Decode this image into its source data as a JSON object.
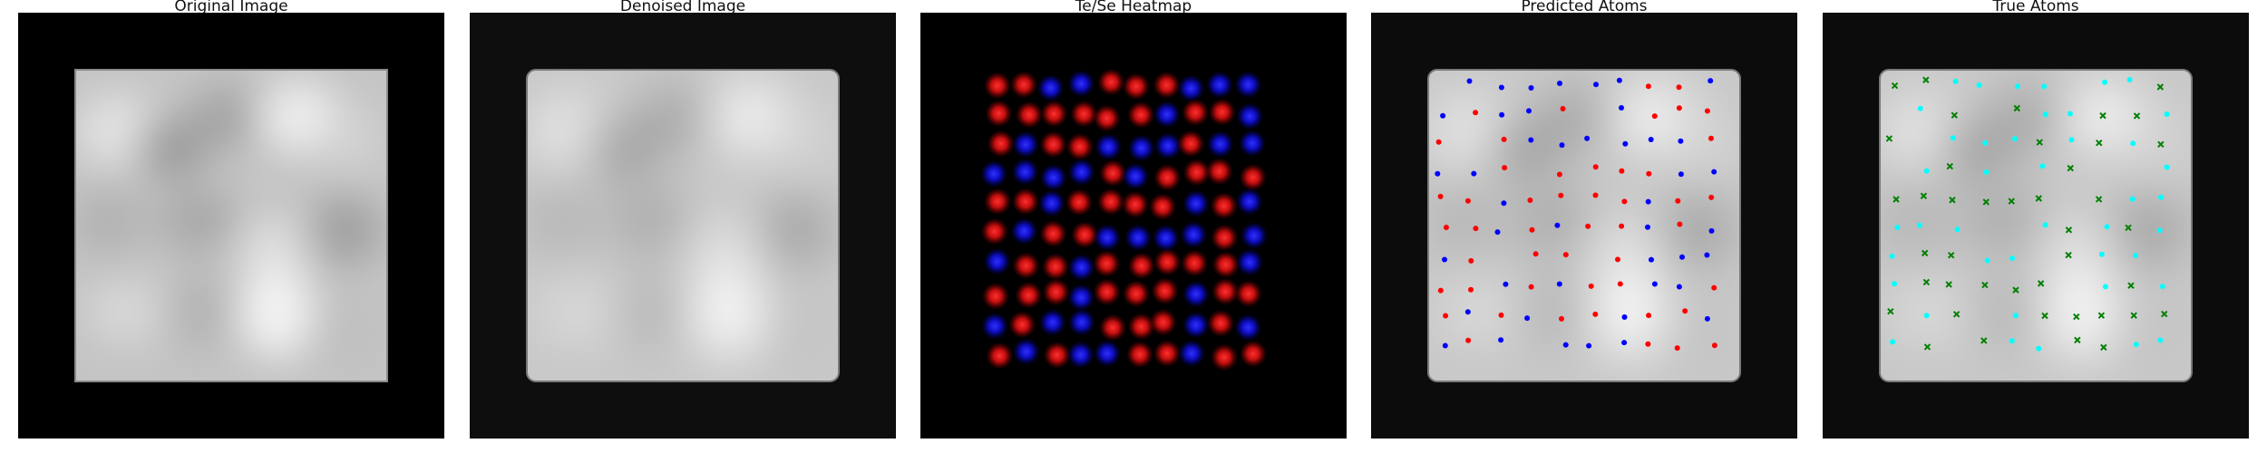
{
  "panels": [
    {
      "id": "original",
      "title": "Original Image"
    },
    {
      "id": "denoised",
      "title": "Denoised Image"
    },
    {
      "id": "heatmap",
      "title": "Te/Se Heatmap"
    },
    {
      "id": "predicted",
      "title": "Predicted Atoms"
    },
    {
      "id": "true",
      "title": "True Atoms"
    }
  ],
  "colors": {
    "background": "#000000",
    "te": "#e8141a",
    "se": "#1a1ae8",
    "pred_te": "#ff0000",
    "pred_se": "#0000ff",
    "true_te": "#00ffff",
    "true_se": "#008000"
  }
}
